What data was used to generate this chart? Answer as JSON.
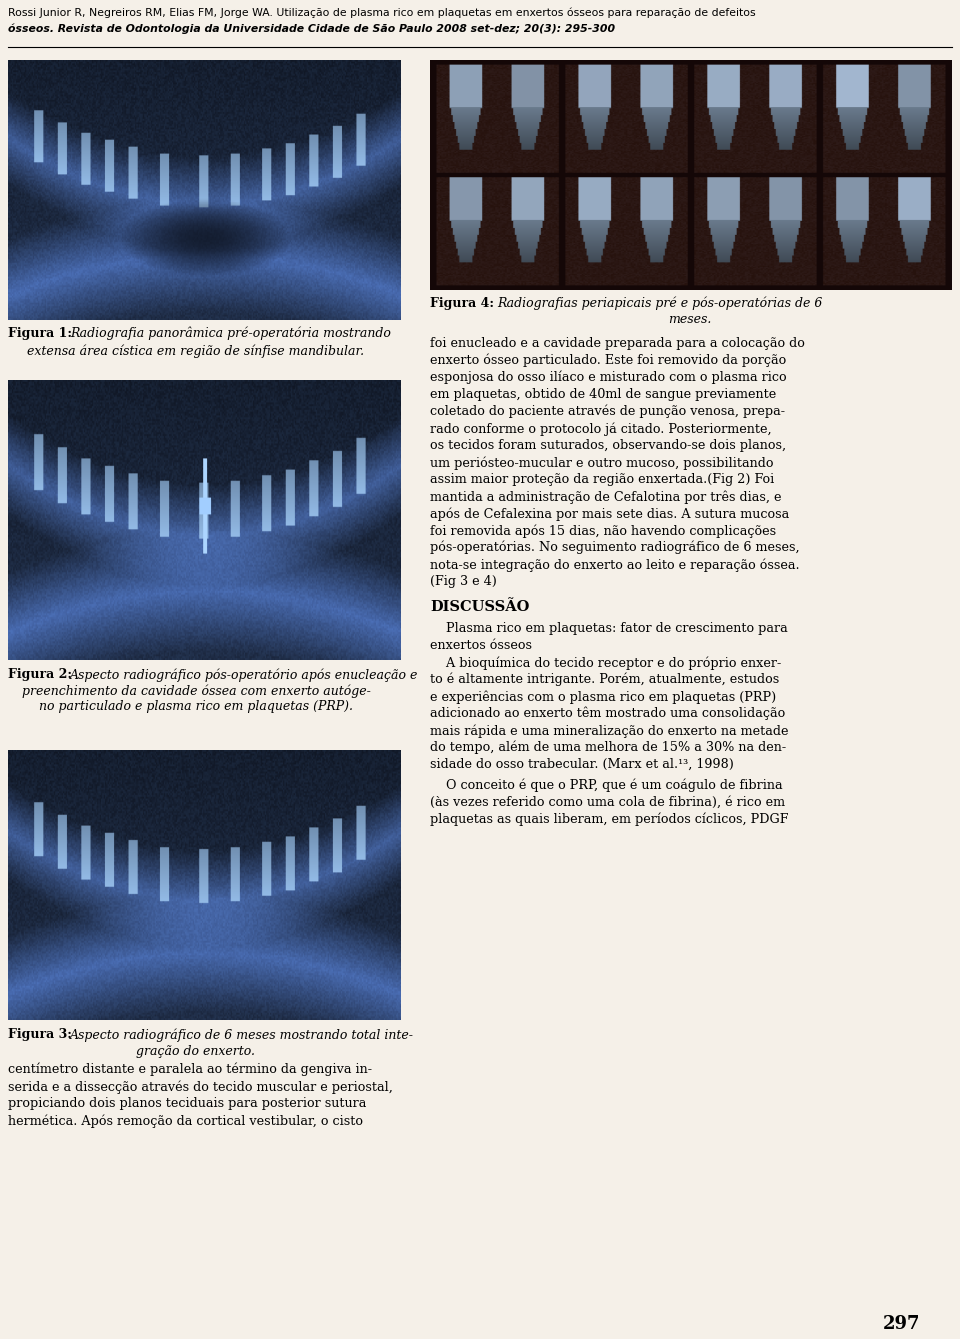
{
  "bg_color": "#f5f0e8",
  "page_width": 9.6,
  "page_height": 13.39,
  "header_text_line1": "Rossi Junior R, Negreiros RM, Elias FM, Jorge WA. Utilização de plasma rico em plaquetas em enxertos ósseos para reparação de defeitos",
  "header_text_line2": "ósseos. Revista de Odontologia da Universidade Cidade de São Paulo 2008 set-dez; 20(3): 295-300",
  "header_fontsize": 7.8,
  "body_fontsize": 9.2,
  "caption_fontsize": 9.0,
  "caption_bold_fontsize": 9.0,
  "discussao_title_fontsize": 10.5,
  "fig1_caption_bold": "Figura 1:",
  "fig1_caption_line1": " Radiografia panorâmica pré-operatória mostrando",
  "fig1_caption_line2": "extensa área cística em região de sínfise mandibular.",
  "fig2_caption_bold": "Figura 2:",
  "fig2_caption_line1": " Aspecto radiográfico pós-operatório após enucleação e",
  "fig2_caption_line2": "preenchimento da cavidade óssea com enxerto autóge-",
  "fig2_caption_line3": "no particulado e plasma rico em plaquetas (PRP).",
  "fig3_caption_bold": "Figura 3:",
  "fig3_caption_line1": " Aspecto radiográfico de 6 meses mostrando total inte-",
  "fig3_caption_line2": "gração do enxerto.",
  "fig4_caption_bold": "Figura 4:",
  "fig4_caption_line1": " Radiografias periapicais pré e pós-operatórias de 6",
  "fig4_caption_line2": "meses.",
  "body_paragraph1_lines": [
    "foi enucleado e a cavidade preparada para a colocação do",
    "enxerto ósseo particulado. Este foi removido da porção",
    "esponjosa do osso ilíaco e misturado com o plasma rico",
    "em plaquetas, obtido de 40ml de sangue previamente",
    "coletado do paciente através de punção venosa, prepa-",
    "rado conforme o protocolo já citado. Posteriormente,",
    "os tecidos foram suturados, observando-se dois planos,",
    "um periósteo-mucular e outro mucoso, possibilitando",
    "assim maior proteção da região enxertada.(Fig 2) Foi",
    "mantida a administração de Cefalotina por três dias, e",
    "após de Cefalexina por mais sete dias. A sutura mucosa",
    "foi removida após 15 dias, não havendo complicações",
    "pós-operatórias. No seguimento radiográfico de 6 meses,",
    "nota-se integração do enxerto ao leito e reparação óssea.",
    "(Fig 3 e 4)"
  ],
  "discussao_title": "DISCUSSÃO",
  "body_paragraph2_lines": [
    "    Plasma rico em plaquetas: fator de crescimento para",
    "enxertos ósseos",
    "    A bioquímica do tecido receptor e do próprio enxer-",
    "to é altamente intrigante. Porém, atualmente, estudos",
    "e experiências com o plasma rico em plaquetas (PRP)",
    "adicionado ao enxerto têm mostrado uma consolidação",
    "mais rápida e uma mineralização do enxerto na metade",
    "do tempo, além de uma melhora de 15% a 30% na den-",
    "sidade do osso trabecular. (Marx et al.¹³, 1998)"
  ],
  "body_paragraph3_lines": [
    "    O conceito é que o PRP, que é um coágulo de fibrina",
    "(às vezes referido como uma cola de fibrina), é rico em",
    "plaquetas as quais liberam, em períodos cíclicos, PDGF"
  ],
  "left_body_lines": [
    "centímetro distante e paralela ao término da gengiva in-",
    "serida e a dissecção através do tecido muscular e periostal,",
    "propiciando dois planos teciduais para posterior sutura",
    "hermética. Após remoção da cortical vestibular, o cisto"
  ],
  "page_number": "297",
  "page_number_fontsize": 13
}
